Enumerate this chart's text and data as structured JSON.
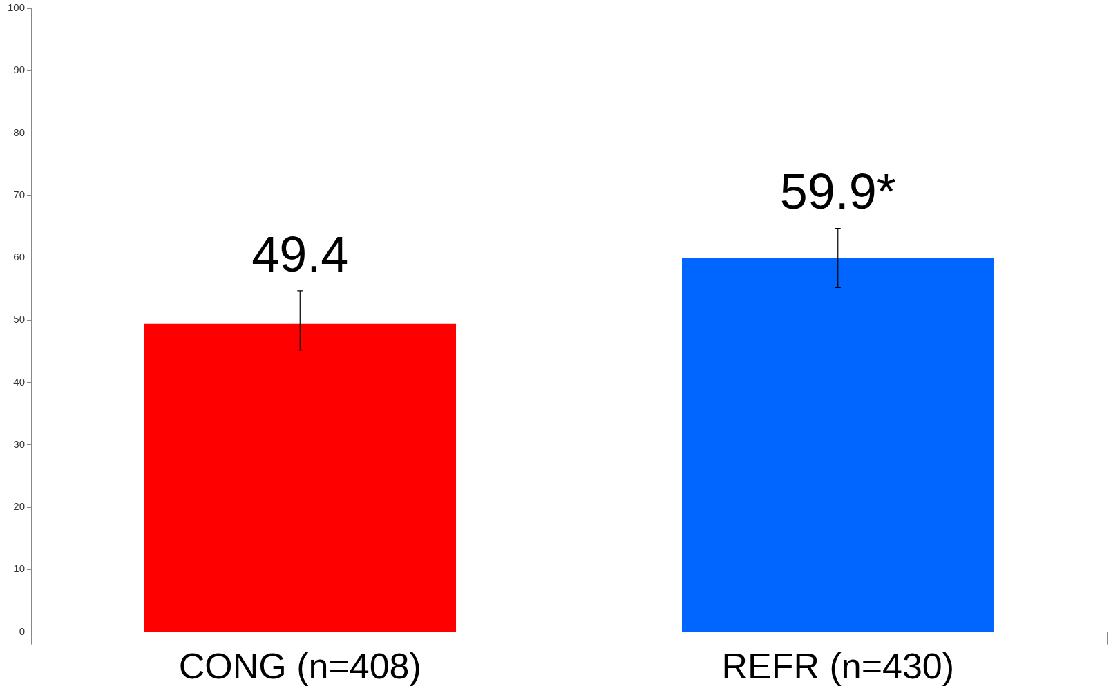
{
  "chart_data": {
    "type": "bar",
    "categories": [
      "CONG (n=408)",
      "REFR (n=430)"
    ],
    "values": [
      49.4,
      59.9
    ],
    "colors": [
      "#ff0000",
      "#0066ff"
    ],
    "errors": [
      [
        45.2,
        54.7
      ],
      [
        55.2,
        64.7
      ]
    ],
    "value_labels": [
      "49.4",
      "59.9*"
    ],
    "ylim": [
      0,
      100
    ],
    "yticks": [
      0,
      10,
      20,
      30,
      40,
      50,
      60,
      70,
      80,
      90,
      100
    ],
    "grid": false,
    "legend": false
  }
}
